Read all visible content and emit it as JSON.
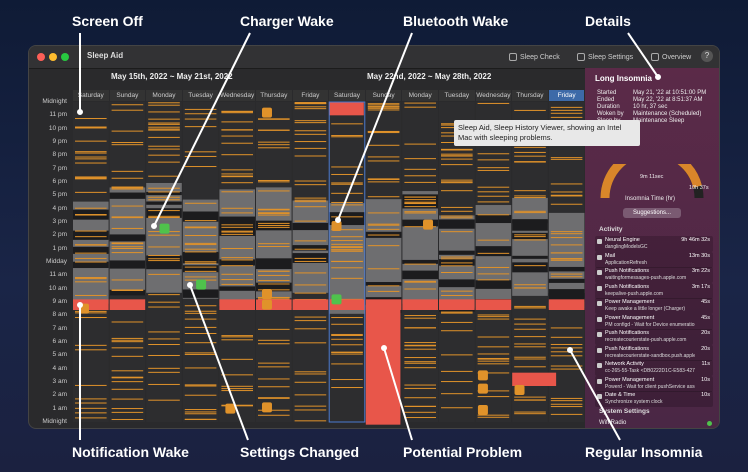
{
  "callouts": {
    "screen_off": "Screen Off",
    "charger_wake": "Charger Wake",
    "bluetooth_wake": "Bluetooth Wake",
    "details": "Details",
    "notification_wake": "Notification Wake",
    "settings_changed": "Settings Changed",
    "potential_problem": "Potential Problem",
    "regular_insomnia": "Regular Insomnia"
  },
  "window": {
    "title": "Sleep Aid",
    "toolbar": [
      {
        "label": "Sleep Check",
        "icon": "list-icon"
      },
      {
        "label": "Sleep Settings",
        "icon": "sliders-icon"
      },
      {
        "label": "Overview",
        "icon": "document-icon"
      }
    ],
    "help": "?"
  },
  "weeks": [
    "May 15th, 2022 ~ May 21st, 2022",
    "May 22nd, 2022 ~ May 28th, 2022"
  ],
  "days": [
    "Saturday",
    "Sunday",
    "Monday",
    "Tuesday",
    "Wednesday",
    "Thursday",
    "Friday",
    "Saturday",
    "Sunday",
    "Monday",
    "Tuesday",
    "Wednesday",
    "Thursday",
    "Friday"
  ],
  "selected_day_index": 13,
  "hours": [
    "Midnight",
    "11 pm",
    "10 pm",
    "9 pm",
    "8 pm",
    "7 pm",
    "6 pm",
    "5 pm",
    "4 pm",
    "3 pm",
    "2 pm",
    "1 pm",
    "Midday",
    "11 am",
    "10 am",
    "9 am",
    "8 am",
    "7 am",
    "6 am",
    "5 am",
    "4 am",
    "3 am",
    "2 am",
    "1 am",
    "Midnight"
  ],
  "tooltip": "Sleep Aid, Sleep History Viewer, showing an Intel Mac with sleeping problems.",
  "details": {
    "heading": "Long Insomnia",
    "rows": [
      {
        "k": "Started",
        "v": "May 21, '22 at 10:51:00 PM"
      },
      {
        "k": "Ended",
        "v": "May 22, '22 at 8:51:37 AM"
      },
      {
        "k": "Duration",
        "v": "10 hr, 37 sec"
      },
      {
        "k": "Woken by",
        "v": "Maintenance (Scheduled)"
      },
      {
        "k": "Sleep by",
        "v": "Maintenance Sleep"
      }
    ],
    "gauge": {
      "start": "9m 11sec",
      "end": "10h 37s",
      "label": "Insomnia Time (hr)",
      "level": 0.92
    },
    "suggestions": "Suggestions...",
    "activity_title": "Activity",
    "activity": [
      {
        "name": "Neural Engine",
        "sub": "danglingModelsGC",
        "time": "9h 46m 32s",
        "icon": "chip-icon"
      },
      {
        "name": "Mail",
        "sub": "ApplicationRefresh",
        "time": "13m 30s",
        "icon": "mail-icon"
      },
      {
        "name": "Push Notifications",
        "sub": "waitingformessages-push.apple.com",
        "time": "3m 22s",
        "icon": "doc-icon"
      },
      {
        "name": "Push Notifications",
        "sub": "keepalive-push.apple.com",
        "time": "3m 17s",
        "icon": "doc-icon"
      },
      {
        "name": "Power Management",
        "sub": "Keep awake a little longer (Charger)",
        "time": "45s",
        "icon": "bulb-icon"
      },
      {
        "name": "Power Management",
        "sub": "PM configd - Wait for Device enumeration",
        "time": "45s",
        "icon": "bulb-icon"
      },
      {
        "name": "Push Notifications",
        "sub": "recreatecourierstate-push.apple.com",
        "time": "20s",
        "icon": "doc-icon"
      },
      {
        "name": "Push Notifications",
        "sub": "recreatecourierstate-sandbox.push.apple.com",
        "time": "20s",
        "icon": "doc-icon"
      },
      {
        "name": "Network Activity",
        "sub": "cc-265-55-Task <DB0222D1C-E583-427F-B",
        "time": "11s",
        "icon": "network-icon"
      },
      {
        "name": "Power Management",
        "sub": "Powerd - Wait for client pushService assert",
        "time": "10s",
        "icon": "bulb-icon"
      },
      {
        "name": "Date & Time",
        "sub": "Synchronize system clock",
        "time": "10s",
        "icon": "clock-icon"
      }
    ],
    "settings_title": "System Settings",
    "settings": [
      {
        "label": "Wifi Radio"
      }
    ]
  },
  "colors": {
    "sleep": "#2d2d2f",
    "awake": "#6e6e70",
    "dark": "#1c1c1e",
    "problem": "#e8564a",
    "orange": "#e0922a",
    "green": "#4fc24c"
  }
}
